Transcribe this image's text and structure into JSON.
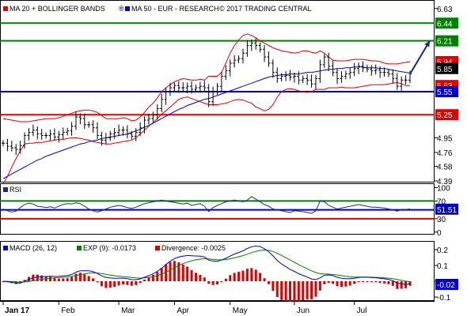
{
  "chart_data": [
    {
      "type": "candlestick",
      "title": "MA 20 + BOLLINGER BANDS",
      "legend": {
        "ma20_bollinger": "MA 20 + BOLLINGER BANDS",
        "ma50": "MA 50 - EUR - RESEARCH",
        "copyright": "© 2017 TRADING CENTRAL",
        "colors": {
          "bollinger": "#e00000",
          "ma50": "#0000cc"
        }
      },
      "y_ticks": [
        "6.63",
        "6.44",
        "6.21",
        "5.94",
        "5.85",
        "5.63",
        "5.55",
        "5.25",
        "4.95",
        "4.76",
        "4.58",
        "4.39"
      ],
      "ylim": [
        4.39,
        6.72
      ],
      "levels": [
        {
          "value": 6.44,
          "label": "6.44",
          "color": "#008000"
        },
        {
          "value": 6.21,
          "label": "6.21",
          "color": "#008000"
        },
        {
          "value": 5.55,
          "label": "5.55",
          "color": "#0000cc"
        },
        {
          "value": 5.25,
          "label": "5.25",
          "color": "#e00000"
        }
      ],
      "value_tags": [
        {
          "value": 5.94,
          "label": "5.94",
          "color": "#e00000"
        },
        {
          "value": 5.85,
          "label": "5.85",
          "color": "#000000"
        },
        {
          "value": 5.63,
          "label": "5.63",
          "color": "#e00000"
        }
      ],
      "projection": {
        "from": 5.78,
        "to": 6.21,
        "color": "#1a2a8a"
      },
      "price": [
        4.88,
        4.84,
        4.82,
        4.8,
        4.85,
        4.98,
        5.02,
        5.05,
        5.0,
        4.98,
        4.98,
        5.0,
        4.96,
        4.99,
        5.02,
        5.04,
        5.1,
        5.22,
        5.2,
        5.12,
        5.12,
        5.08,
        4.98,
        4.92,
        4.95,
        5.0,
        5.02,
        5.05,
        5.05,
        5.0,
        4.97,
        5.02,
        5.08,
        5.18,
        5.2,
        5.25,
        5.33,
        5.45,
        5.55,
        5.6,
        5.63,
        5.6,
        5.6,
        5.62,
        5.58,
        5.6,
        5.62,
        5.6,
        5.42,
        5.55,
        5.62,
        5.75,
        5.82,
        5.92,
        5.96,
        5.98,
        6.05,
        6.15,
        6.18,
        6.15,
        6.1,
        6.0,
        5.92,
        5.8,
        5.72,
        5.75,
        5.76,
        5.74,
        5.75,
        5.7,
        5.72,
        5.7,
        5.65,
        5.72,
        5.9,
        6.0,
        5.88,
        5.8,
        5.72,
        5.75,
        5.78,
        5.8,
        5.85,
        5.88,
        5.86,
        5.84,
        5.82,
        5.83,
        5.8,
        5.8,
        5.78,
        5.72,
        5.62,
        5.7,
        5.7,
        5.78
      ],
      "bollinger_upper": [
        5.2,
        5.19,
        5.18,
        5.17,
        5.16,
        5.16,
        5.16,
        5.17,
        5.18,
        5.19,
        5.2,
        5.2,
        5.2,
        5.21,
        5.23,
        5.25,
        5.27,
        5.29,
        5.3,
        5.31,
        5.31,
        5.3,
        5.28,
        5.24,
        5.2,
        5.2,
        5.2,
        5.2,
        5.21,
        5.2,
        5.17,
        5.18,
        5.22,
        5.28,
        5.35,
        5.4,
        5.47,
        5.55,
        5.6,
        5.64,
        5.68,
        5.7,
        5.72,
        5.71,
        5.7,
        5.7,
        5.71,
        5.7,
        5.75,
        5.75,
        5.75,
        5.8,
        5.92,
        6.05,
        6.15,
        6.22,
        6.28,
        6.3,
        6.28,
        6.25,
        6.21,
        6.18,
        6.15,
        6.12,
        6.1,
        6.08,
        6.07,
        6.06,
        6.05,
        6.06,
        6.08,
        6.08,
        6.06,
        6.05,
        6.08,
        6.05,
        6.0,
        5.96,
        5.95,
        5.95,
        5.95,
        5.96,
        5.97,
        5.97,
        5.97,
        5.96,
        5.95,
        5.95,
        5.94,
        5.92,
        5.91,
        5.91,
        5.91,
        5.92,
        5.93,
        5.94
      ],
      "bollinger_lower": [
        4.35,
        4.45,
        4.57,
        4.68,
        4.78,
        4.87,
        4.88,
        4.88,
        4.89,
        4.89,
        4.9,
        4.91,
        4.92,
        4.93,
        4.93,
        4.94,
        4.95,
        4.95,
        4.94,
        4.93,
        4.92,
        4.9,
        4.89,
        4.88,
        4.87,
        4.87,
        4.88,
        4.89,
        4.9,
        4.91,
        4.92,
        4.95,
        5.0,
        5.05,
        5.1,
        5.15,
        5.2,
        5.26,
        5.3,
        5.35,
        5.4,
        5.45,
        5.47,
        5.48,
        5.46,
        5.44,
        5.42,
        5.4,
        5.38,
        5.38,
        5.38,
        5.39,
        5.4,
        5.42,
        5.44,
        5.45,
        5.44,
        5.42,
        5.4,
        5.35,
        5.33,
        5.3,
        5.32,
        5.38,
        5.48,
        5.55,
        5.58,
        5.59,
        5.58,
        5.56,
        5.55,
        5.54,
        5.55,
        5.58,
        5.58,
        5.58,
        5.6,
        5.6,
        5.6,
        5.61,
        5.6,
        5.6,
        5.6,
        5.61,
        5.62,
        5.63,
        5.64,
        5.64,
        5.64,
        5.64,
        5.65,
        5.66,
        5.67,
        5.65,
        5.63,
        5.63
      ],
      "ma50": [
        4.42,
        4.45,
        4.48,
        4.51,
        4.54,
        4.57,
        4.6,
        4.63,
        4.66,
        4.68,
        4.71,
        4.73,
        4.75,
        4.77,
        4.79,
        4.81,
        4.83,
        4.85,
        4.87,
        4.88,
        4.9,
        4.91,
        4.92,
        4.94,
        4.95,
        4.96,
        4.97,
        4.98,
        4.99,
        5.0,
        5.02,
        5.04,
        5.06,
        5.09,
        5.11,
        5.14,
        5.17,
        5.2,
        5.23,
        5.26,
        5.29,
        5.32,
        5.34,
        5.37,
        5.39,
        5.41,
        5.43,
        5.45,
        5.46,
        5.48,
        5.5,
        5.52,
        5.54,
        5.56,
        5.58,
        5.6,
        5.62,
        5.64,
        5.66,
        5.68,
        5.7,
        5.72,
        5.74,
        5.75,
        5.76,
        5.77,
        5.77,
        5.78,
        5.78,
        5.78,
        5.79,
        5.8,
        5.8,
        5.81,
        5.82,
        5.83,
        5.84,
        5.84,
        5.85,
        5.85,
        5.86,
        5.86,
        5.87,
        5.87,
        5.87,
        5.86,
        5.86,
        5.86,
        5.85,
        5.85,
        5.84,
        5.83,
        5.82,
        5.81,
        5.8,
        5.79
      ]
    },
    {
      "type": "line",
      "title": "RSI",
      "y_ticks": [
        "100",
        "70",
        "51.51",
        "30",
        "0"
      ],
      "ylim": [
        -4,
        108
      ],
      "levels": [
        {
          "value": 70,
          "label": "70",
          "color": "#008000"
        },
        {
          "value": 50,
          "label": "",
          "color": "#0000cc"
        },
        {
          "value": 30,
          "label": "30",
          "color": "#e00000"
        }
      ],
      "value_tag": {
        "value": 51.51,
        "label": "51.51",
        "color": "#0000cc"
      },
      "series": [
        {
          "values": [
            52,
            48,
            45,
            47,
            55,
            62,
            65,
            63,
            58,
            57,
            55,
            57,
            54,
            58,
            62,
            64,
            63,
            66,
            64,
            58,
            52,
            48,
            45,
            48,
            52,
            56,
            58,
            60,
            58,
            55,
            53,
            56,
            60,
            64,
            66,
            68,
            70,
            72,
            70,
            68,
            67,
            65,
            63,
            65,
            60,
            62,
            64,
            58,
            46,
            55,
            60,
            64,
            68,
            70,
            72,
            70,
            68,
            72,
            80,
            74,
            68,
            62,
            58,
            52,
            50,
            48,
            46,
            44,
            48,
            47,
            46,
            44,
            42,
            48,
            70,
            68,
            60,
            56,
            52,
            54,
            56,
            58,
            60,
            62,
            60,
            58,
            56,
            56,
            55,
            54,
            52,
            50,
            47,
            51,
            51,
            52
          ]
        }
      ]
    },
    {
      "type": "line",
      "title": "MACD (26, 12)",
      "legend": [
        {
          "name": "MACD (26, 12)",
          "color": "#0000cc"
        },
        {
          "name": "EXP (9): -0.0173",
          "color": "#008000"
        },
        {
          "name": "Divergence: -0.0025",
          "color": "#e00000"
        }
      ],
      "y_ticks": [
        "0.2",
        "0.1",
        "0",
        "-0.02",
        "-0.1"
      ],
      "ylim": [
        -0.12,
        0.25
      ],
      "value_tag": {
        "value": -0.02,
        "label": "-0.02",
        "color": "#0000cc"
      },
      "x_month_labels": [
        "Jan 17",
        "Feb",
        "Mar",
        "Apr",
        "May",
        "Jun",
        "Jul"
      ],
      "month_start_index": [
        0,
        13,
        27,
        40,
        53,
        68,
        82
      ]
    }
  ]
}
